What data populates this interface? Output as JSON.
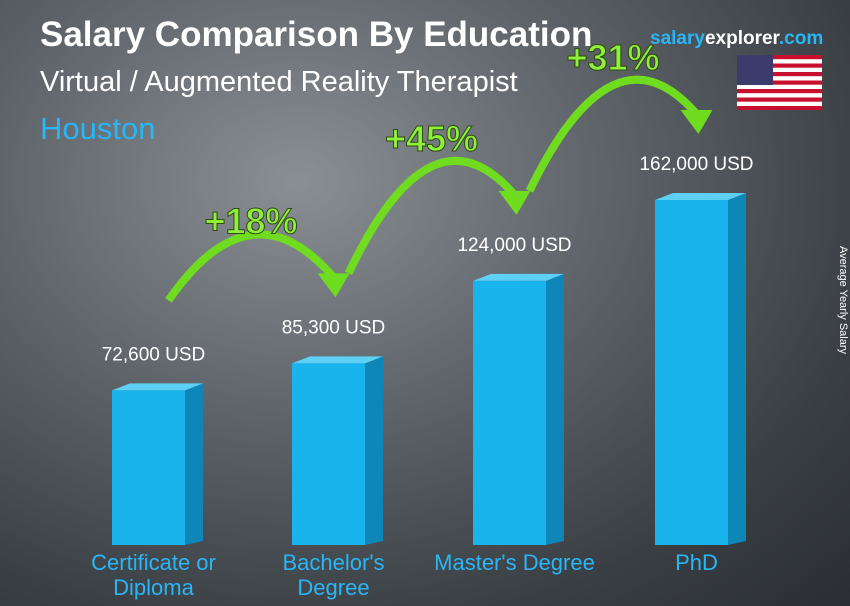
{
  "chart_data": {
    "type": "bar",
    "title": "Salary Comparison By Education",
    "subtitle": "Virtual / Augmented Reality Therapist",
    "location": "Houston",
    "brand": {
      "part1": "salary",
      "part2": "explorer",
      "part3": ".com"
    },
    "y_axis_label": "Average Yearly Salary",
    "categories": [
      "Certificate or Diploma",
      "Bachelor's Degree",
      "Master's Degree",
      "PhD"
    ],
    "values": [
      72600,
      85300,
      124000,
      162000
    ],
    "value_labels": [
      "72,600 USD",
      "85,300 USD",
      "124,000 USD",
      "162,000 USD"
    ],
    "changes": [
      "+18%",
      "+45%",
      "+31%"
    ],
    "color": "#1ab4ec"
  }
}
